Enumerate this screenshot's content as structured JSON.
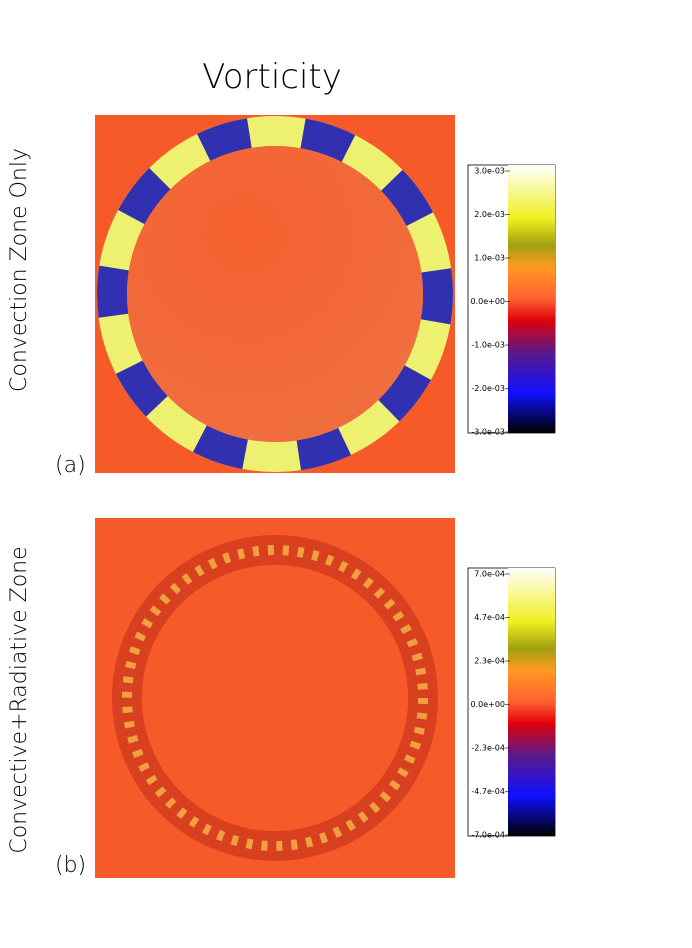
{
  "figure": {
    "title": "Vorticity",
    "panels": [
      {
        "ylabel": "Convection Zone Only",
        "tag": "(a)",
        "colorbar_ticks": [
          "3.0e-03",
          "2.0e-03",
          "1.0e-03",
          "0.0e+00",
          "-1.0e-03",
          "-2.0e-03",
          "-3.0e-03"
        ]
      },
      {
        "ylabel": "Convective+Radiative Zone",
        "tag": "(b)",
        "colorbar_ticks": [
          "7.0e-04",
          "4.7e-04",
          "2.3e-04",
          "0.0e+00",
          "-2.3e-04",
          "-4.7e-04",
          "-7.0e-04"
        ]
      }
    ]
  }
}
